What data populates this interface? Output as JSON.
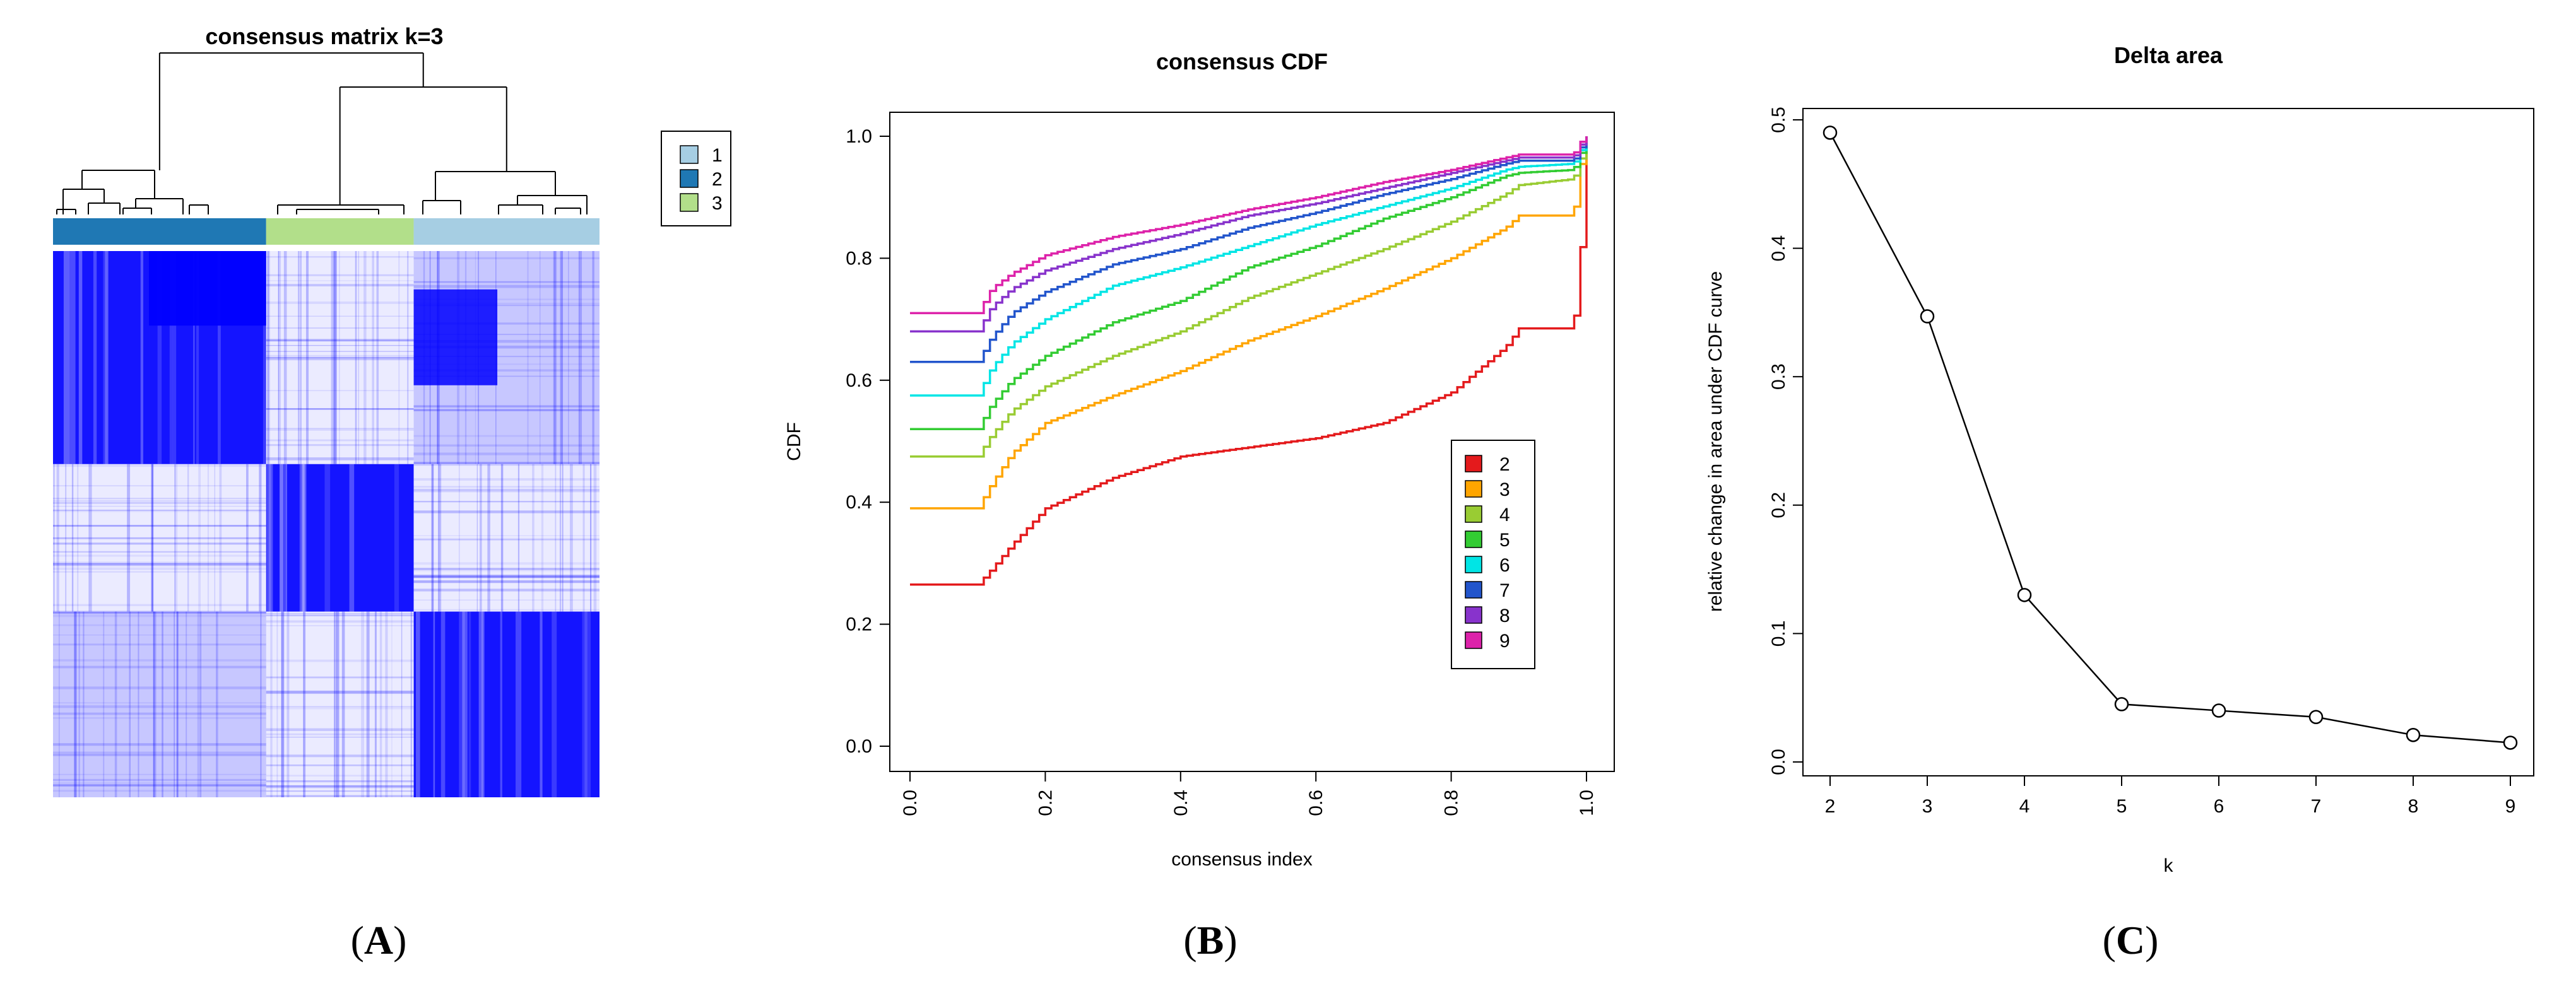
{
  "figure": {
    "panels": [
      {
        "id": "A",
        "label_open": "(",
        "label_letter": "A",
        "label_close": ")"
      },
      {
        "id": "B",
        "label_open": "(",
        "label_letter": "B",
        "label_close": ")"
      },
      {
        "id": "C",
        "label_open": "(",
        "label_letter": "C",
        "label_close": ")"
      }
    ]
  },
  "chart_data": [
    {
      "type": "heatmap",
      "title": "consensus matrix k=3",
      "legend": [
        "1",
        "2",
        "3"
      ],
      "cluster_colors": {
        "1": "#a6cee3",
        "2": "#1f78b4",
        "3": "#b2df8a"
      },
      "cell_color": "#0000ff",
      "cluster_order": [
        "2",
        "3",
        "1"
      ],
      "cluster_fractions": [
        0.39,
        0.27,
        0.34
      ]
    },
    {
      "type": "line",
      "title": "consensus CDF",
      "xlabel": "consensus index",
      "ylabel": "CDF",
      "xlim": [
        0,
        1
      ],
      "ylim": [
        0,
        1
      ],
      "xticks": [
        "0.0",
        "0.2",
        "0.4",
        "0.6",
        "0.8",
        "1.0"
      ],
      "yticks": [
        "0.0",
        "0.2",
        "0.4",
        "0.6",
        "0.8",
        "1.0"
      ],
      "legend_position": "bottom-right",
      "series": [
        {
          "name": "2",
          "color": "#e41a1c",
          "knots": [
            [
              0,
              0.265
            ],
            [
              0.1,
              0.265
            ],
            [
              0.12,
              0.29
            ],
            [
              0.15,
              0.33
            ],
            [
              0.2,
              0.39
            ],
            [
              0.3,
              0.44
            ],
            [
              0.4,
              0.475
            ],
            [
              0.5,
              0.49
            ],
            [
              0.6,
              0.505
            ],
            [
              0.7,
              0.53
            ],
            [
              0.8,
              0.58
            ],
            [
              0.88,
              0.655
            ],
            [
              0.9,
              0.685
            ],
            [
              0.98,
              0.685
            ],
            [
              0.99,
              0.8
            ],
            [
              1.0,
              1.0
            ]
          ]
        },
        {
          "name": "3",
          "color": "#ffa500",
          "knots": [
            [
              0,
              0.39
            ],
            [
              0.1,
              0.39
            ],
            [
              0.12,
              0.43
            ],
            [
              0.15,
              0.48
            ],
            [
              0.2,
              0.53
            ],
            [
              0.3,
              0.575
            ],
            [
              0.4,
              0.615
            ],
            [
              0.5,
              0.665
            ],
            [
              0.6,
              0.705
            ],
            [
              0.7,
              0.75
            ],
            [
              0.8,
              0.8
            ],
            [
              0.88,
              0.85
            ],
            [
              0.9,
              0.87
            ],
            [
              0.98,
              0.87
            ],
            [
              0.99,
              0.95
            ],
            [
              1.0,
              1.0
            ]
          ]
        },
        {
          "name": "4",
          "color": "#99cc33",
          "knots": [
            [
              0,
              0.475
            ],
            [
              0.1,
              0.475
            ],
            [
              0.12,
              0.51
            ],
            [
              0.15,
              0.55
            ],
            [
              0.2,
              0.59
            ],
            [
              0.3,
              0.64
            ],
            [
              0.4,
              0.68
            ],
            [
              0.5,
              0.735
            ],
            [
              0.6,
              0.775
            ],
            [
              0.7,
              0.815
            ],
            [
              0.8,
              0.86
            ],
            [
              0.88,
              0.905
            ],
            [
              0.9,
              0.92
            ],
            [
              0.98,
              0.93
            ],
            [
              0.99,
              0.96
            ],
            [
              1.0,
              1.0
            ]
          ]
        },
        {
          "name": "5",
          "color": "#33cc33",
          "knots": [
            [
              0,
              0.52
            ],
            [
              0.1,
              0.52
            ],
            [
              0.12,
              0.56
            ],
            [
              0.15,
              0.6
            ],
            [
              0.2,
              0.64
            ],
            [
              0.3,
              0.695
            ],
            [
              0.4,
              0.73
            ],
            [
              0.5,
              0.785
            ],
            [
              0.6,
              0.82
            ],
            [
              0.7,
              0.865
            ],
            [
              0.8,
              0.9
            ],
            [
              0.88,
              0.935
            ],
            [
              0.9,
              0.94
            ],
            [
              0.98,
              0.945
            ],
            [
              0.99,
              0.97
            ],
            [
              1.0,
              1.0
            ]
          ]
        },
        {
          "name": "6",
          "color": "#00e5e5",
          "knots": [
            [
              0,
              0.575
            ],
            [
              0.1,
              0.575
            ],
            [
              0.12,
              0.62
            ],
            [
              0.15,
              0.66
            ],
            [
              0.2,
              0.7
            ],
            [
              0.3,
              0.755
            ],
            [
              0.4,
              0.785
            ],
            [
              0.5,
              0.82
            ],
            [
              0.6,
              0.855
            ],
            [
              0.7,
              0.885
            ],
            [
              0.8,
              0.915
            ],
            [
              0.88,
              0.945
            ],
            [
              0.9,
              0.95
            ],
            [
              0.98,
              0.955
            ],
            [
              0.99,
              0.975
            ],
            [
              1.0,
              1.0
            ]
          ]
        },
        {
          "name": "7",
          "color": "#2255cc",
          "knots": [
            [
              0,
              0.63
            ],
            [
              0.1,
              0.63
            ],
            [
              0.12,
              0.67
            ],
            [
              0.15,
              0.71
            ],
            [
              0.2,
              0.745
            ],
            [
              0.3,
              0.79
            ],
            [
              0.4,
              0.815
            ],
            [
              0.5,
              0.85
            ],
            [
              0.6,
              0.875
            ],
            [
              0.7,
              0.905
            ],
            [
              0.8,
              0.93
            ],
            [
              0.88,
              0.955
            ],
            [
              0.9,
              0.96
            ],
            [
              0.98,
              0.96
            ],
            [
              0.99,
              0.98
            ],
            [
              1.0,
              1.0
            ]
          ]
        },
        {
          "name": "8",
          "color": "#8833cc",
          "knots": [
            [
              0,
              0.68
            ],
            [
              0.1,
              0.68
            ],
            [
              0.12,
              0.72
            ],
            [
              0.15,
              0.75
            ],
            [
              0.2,
              0.78
            ],
            [
              0.3,
              0.815
            ],
            [
              0.4,
              0.84
            ],
            [
              0.5,
              0.87
            ],
            [
              0.6,
              0.89
            ],
            [
              0.7,
              0.915
            ],
            [
              0.8,
              0.94
            ],
            [
              0.88,
              0.96
            ],
            [
              0.9,
              0.965
            ],
            [
              0.98,
              0.965
            ],
            [
              0.99,
              0.985
            ],
            [
              1.0,
              1.0
            ]
          ]
        },
        {
          "name": "9",
          "color": "#dd22aa",
          "knots": [
            [
              0,
              0.71
            ],
            [
              0.1,
              0.71
            ],
            [
              0.12,
              0.75
            ],
            [
              0.15,
              0.775
            ],
            [
              0.2,
              0.805
            ],
            [
              0.3,
              0.835
            ],
            [
              0.4,
              0.855
            ],
            [
              0.5,
              0.88
            ],
            [
              0.6,
              0.9
            ],
            [
              0.7,
              0.925
            ],
            [
              0.8,
              0.945
            ],
            [
              0.88,
              0.965
            ],
            [
              0.9,
              0.97
            ],
            [
              0.98,
              0.97
            ],
            [
              0.99,
              0.99
            ],
            [
              1.0,
              1.0
            ]
          ]
        }
      ]
    },
    {
      "type": "line",
      "title": "Delta area",
      "xlabel": "k",
      "ylabel": "relative change in area under CDF curve",
      "xlim": [
        2,
        9
      ],
      "ylim": [
        0,
        0.5
      ],
      "xticks": [
        "2",
        "3",
        "4",
        "5",
        "6",
        "7",
        "8",
        "9"
      ],
      "yticks": [
        "0.0",
        "0.1",
        "0.2",
        "0.3",
        "0.4",
        "0.5"
      ],
      "x": [
        2,
        3,
        4,
        5,
        6,
        7,
        8,
        9
      ],
      "y": [
        0.49,
        0.347,
        0.13,
        0.045,
        0.04,
        0.035,
        0.021,
        0.015
      ]
    }
  ]
}
